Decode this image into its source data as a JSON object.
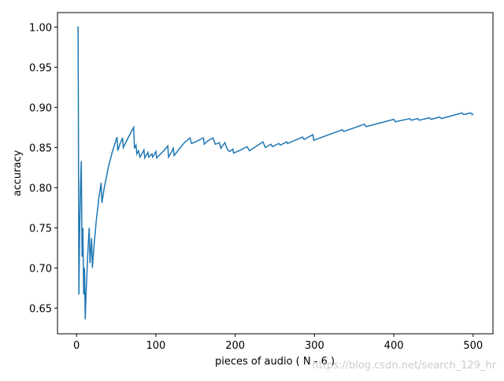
{
  "chart_data": {
    "type": "line",
    "xlabel": "pieces of audio ( N - 6 )",
    "ylabel": "accuracy",
    "watermark": "https://blog.csdn.net/search_129_hr",
    "x": [
      1,
      2,
      3,
      4,
      5,
      6,
      7,
      8,
      9,
      10,
      11,
      12,
      14,
      15,
      16,
      17,
      18,
      19,
      20,
      22,
      25,
      28,
      31,
      32,
      35,
      40,
      45,
      50,
      51,
      52,
      55,
      58,
      59,
      65,
      72,
      73,
      75,
      76,
      78,
      80,
      83,
      85,
      86,
      90,
      91,
      95,
      96,
      100,
      101,
      110,
      115,
      116,
      120,
      122,
      123,
      135,
      143,
      145,
      150,
      160,
      161,
      165,
      172,
      175,
      180,
      182,
      187,
      190,
      193,
      197,
      198,
      205,
      215,
      218,
      235,
      238,
      245,
      247,
      255,
      257,
      265,
      266,
      285,
      287,
      298,
      299,
      310,
      335,
      337,
      363,
      365,
      400,
      402,
      420,
      422,
      430,
      432,
      445,
      447,
      458,
      460,
      486,
      488,
      497,
      499,
      500
    ],
    "series": [
      {
        "name": "accuracy",
        "color": "#1f77b4",
        "values": [
          1.0,
          1.0,
          0.667,
          0.75,
          0.8,
          0.833,
          0.714,
          0.75,
          0.667,
          0.7,
          0.636,
          0.667,
          0.714,
          0.733,
          0.75,
          0.706,
          0.722,
          0.737,
          0.7,
          0.727,
          0.76,
          0.786,
          0.806,
          0.781,
          0.8,
          0.825,
          0.844,
          0.86,
          0.863,
          0.846,
          0.855,
          0.862,
          0.85,
          0.862,
          0.875,
          0.849,
          0.853,
          0.842,
          0.846,
          0.838,
          0.843,
          0.847,
          0.837,
          0.844,
          0.838,
          0.842,
          0.838,
          0.845,
          0.837,
          0.846,
          0.852,
          0.838,
          0.845,
          0.849,
          0.84,
          0.855,
          0.862,
          0.855,
          0.857,
          0.862,
          0.854,
          0.858,
          0.862,
          0.854,
          0.856,
          0.849,
          0.856,
          0.848,
          0.845,
          0.848,
          0.843,
          0.846,
          0.851,
          0.846,
          0.857,
          0.85,
          0.854,
          0.851,
          0.855,
          0.853,
          0.857,
          0.855,
          0.863,
          0.86,
          0.866,
          0.859,
          0.863,
          0.872,
          0.87,
          0.879,
          0.876,
          0.885,
          0.882,
          0.886,
          0.884,
          0.886,
          0.884,
          0.887,
          0.885,
          0.888,
          0.886,
          0.893,
          0.891,
          0.893,
          0.891,
          0.892
        ]
      }
    ],
    "xlim": [
      -24,
      525
    ],
    "ylim": [
      0.618,
      1.018
    ],
    "xticks": [
      0,
      100,
      200,
      300,
      400,
      500
    ],
    "yticks": [
      {
        "value": 0.65,
        "label": "0.65"
      },
      {
        "value": 0.7,
        "label": "0.70"
      },
      {
        "value": 0.75,
        "label": "0.75"
      },
      {
        "value": 0.8,
        "label": "0.80"
      },
      {
        "value": 0.85,
        "label": "0.85"
      },
      {
        "value": 0.9,
        "label": "0.90"
      },
      {
        "value": 0.95,
        "label": "0.95"
      },
      {
        "value": 1.0,
        "label": "1.00"
      }
    ]
  }
}
